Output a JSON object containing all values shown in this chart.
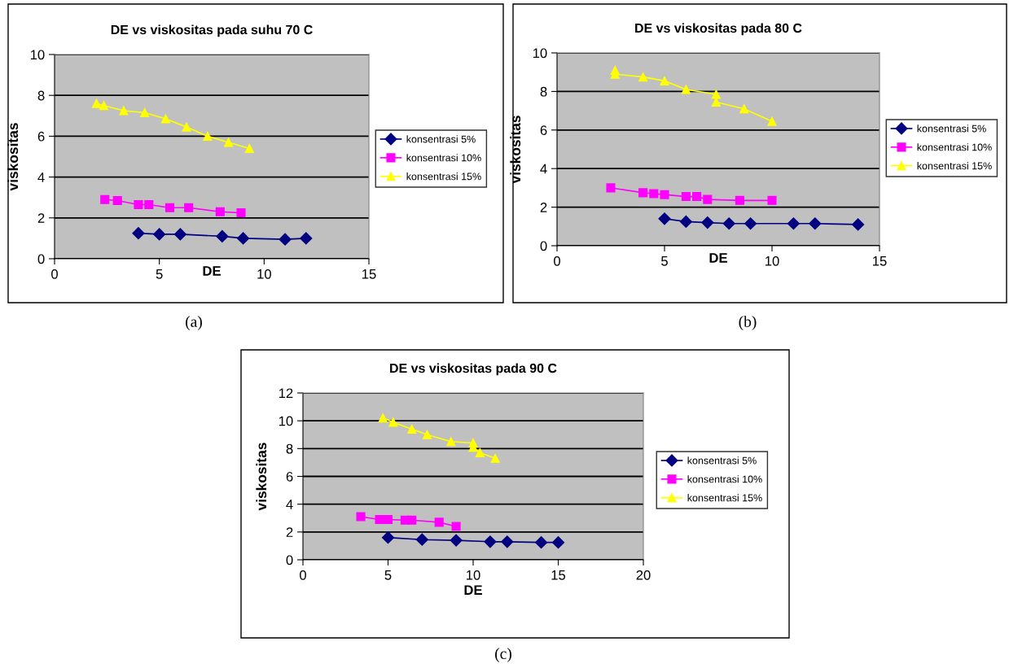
{
  "chart_data": [
    {
      "type": "line",
      "title": "DE vs viskositas pada suhu 70 C",
      "xlabel": "DE",
      "ylabel": "viskositas",
      "xlim": [
        0,
        15
      ],
      "xticks": [
        0,
        5,
        10,
        15
      ],
      "ylim": [
        0,
        10
      ],
      "yticks": [
        0,
        2,
        4,
        6,
        8,
        10
      ],
      "grid": "y",
      "legend": "right",
      "annotations": [
        "(a)"
      ],
      "series": [
        {
          "name": "konsentrasi 5%",
          "color": "#000080",
          "marker": "diamond",
          "x": [
            4.0,
            5.0,
            6.0,
            8.0,
            9.0,
            11.0,
            12.0
          ],
          "values": [
            1.25,
            1.2,
            1.2,
            1.1,
            1.0,
            0.95,
            1.0
          ]
        },
        {
          "name": "konsentrasi 10%",
          "color": "#ff00ff",
          "marker": "square",
          "x": [
            2.4,
            3.0,
            4.0,
            4.5,
            5.5,
            6.4,
            7.9,
            8.9
          ],
          "values": [
            2.9,
            2.85,
            2.65,
            2.65,
            2.5,
            2.5,
            2.3,
            2.25
          ]
        },
        {
          "name": "konsentrasi 15%",
          "color": "#ffff00",
          "marker": "triangle",
          "x": [
            2.0,
            2.35,
            3.3,
            4.3,
            5.3,
            6.3,
            7.3,
            8.3,
            9.3
          ],
          "values": [
            7.6,
            7.5,
            7.25,
            7.15,
            6.85,
            6.45,
            6.0,
            5.7,
            5.4
          ]
        }
      ]
    },
    {
      "type": "line",
      "title": "DE vs viskositas pada 80 C",
      "xlabel": "DE",
      "ylabel": "viskositas",
      "xlim": [
        0,
        15
      ],
      "xticks": [
        0,
        5,
        10,
        15
      ],
      "ylim": [
        0,
        10
      ],
      "yticks": [
        0,
        2,
        4,
        6,
        8,
        10
      ],
      "grid": "y",
      "legend": "right",
      "annotations": [
        "(b)"
      ],
      "series": [
        {
          "name": "konsentrasi 5%",
          "color": "#000080",
          "marker": "diamond",
          "x": [
            5.0,
            6.0,
            7.0,
            8.0,
            9.0,
            11.0,
            12.0,
            14.0
          ],
          "values": [
            1.4,
            1.25,
            1.2,
            1.15,
            1.15,
            1.15,
            1.15,
            1.1
          ]
        },
        {
          "name": "konsentrasi 10%",
          "color": "#ff00ff",
          "marker": "square",
          "x": [
            2.5,
            4.0,
            4.5,
            5.0,
            6.0,
            6.5,
            7.0,
            8.5,
            10.0
          ],
          "values": [
            3.0,
            2.75,
            2.7,
            2.65,
            2.55,
            2.55,
            2.4,
            2.35,
            2.35
          ]
        },
        {
          "name": "konsentrasi 15%",
          "color": "#ffff00",
          "marker": "triangle",
          "x": [
            2.7,
            2.7,
            4.0,
            5.0,
            6.0,
            7.4,
            7.4,
            8.7,
            10.0
          ],
          "values": [
            9.1,
            8.9,
            8.75,
            8.55,
            8.1,
            7.85,
            7.45,
            7.1,
            6.45
          ]
        }
      ]
    },
    {
      "type": "line",
      "title": "DE vs viskositas pada 90 C",
      "xlabel": "DE",
      "ylabel": "viskositas",
      "xlim": [
        0,
        20
      ],
      "xticks": [
        0,
        5,
        10,
        15,
        20
      ],
      "ylim": [
        0,
        12
      ],
      "yticks": [
        0,
        2,
        4,
        6,
        8,
        10,
        12
      ],
      "grid": "y",
      "legend": "right",
      "annotations": [
        "(c)"
      ],
      "series": [
        {
          "name": "konsentrasi 5%",
          "color": "#000080",
          "marker": "diamond",
          "x": [
            5.0,
            7.0,
            9.0,
            11.0,
            12.0,
            14.0,
            15.0
          ],
          "values": [
            1.6,
            1.45,
            1.4,
            1.3,
            1.3,
            1.25,
            1.25
          ]
        },
        {
          "name": "konsentrasi 10%",
          "color": "#ff00ff",
          "marker": "square",
          "x": [
            3.4,
            4.5,
            5.0,
            6.0,
            6.4,
            8.0,
            9.0
          ],
          "values": [
            3.1,
            2.9,
            2.9,
            2.85,
            2.85,
            2.7,
            2.4
          ]
        },
        {
          "name": "konsentrasi 15%",
          "color": "#ffff00",
          "marker": "triangle",
          "x": [
            4.7,
            5.3,
            6.4,
            7.3,
            8.7,
            10.0,
            10.0,
            10.4,
            11.3
          ],
          "values": [
            10.2,
            9.9,
            9.4,
            9.0,
            8.5,
            8.4,
            8.1,
            7.7,
            7.3
          ]
        }
      ]
    }
  ]
}
